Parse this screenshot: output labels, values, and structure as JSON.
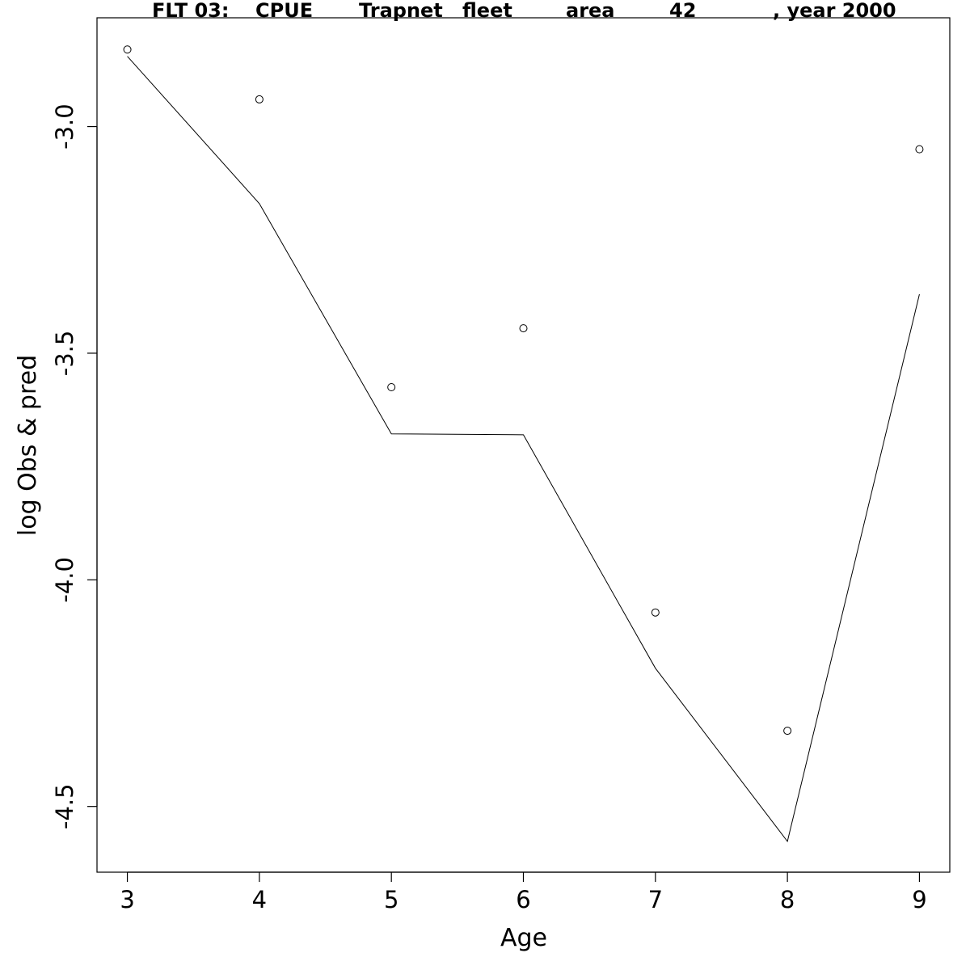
{
  "chart_data": {
    "type": "line",
    "title_parts": [
      "FLT 03:",
      "CPUE",
      "Trapnet",
      "fleet",
      "area",
      "42",
      ", year 2000"
    ],
    "xlabel": "Age",
    "ylabel": "log Obs & pred",
    "xlim": [
      2.77,
      9.23
    ],
    "ylim": [
      -4.645,
      -2.76
    ],
    "x_ticks": [
      3,
      4,
      5,
      6,
      7,
      8,
      9
    ],
    "x_tick_labels": [
      "3",
      "4",
      "5",
      "6",
      "7",
      "8",
      "9"
    ],
    "y_ticks": [
      -3.0,
      -3.5,
      -4.0,
      -4.5
    ],
    "y_tick_labels": [
      "-3.0",
      "-3.5",
      "-4.0",
      "-4.5"
    ],
    "grid": false,
    "series": [
      {
        "kind": "points",
        "marker": "open-circle",
        "x": [
          3,
          4,
          5,
          6,
          7,
          8,
          9
        ],
        "y": [
          -2.83,
          -2.94,
          -3.575,
          -3.445,
          -4.072,
          -4.333,
          -3.05
        ]
      },
      {
        "kind": "line",
        "x": [
          3,
          4,
          5,
          6,
          7,
          8,
          9
        ],
        "y": [
          -2.845,
          -3.17,
          -3.678,
          -3.68,
          -4.195,
          -4.577,
          -3.37
        ]
      }
    ]
  }
}
